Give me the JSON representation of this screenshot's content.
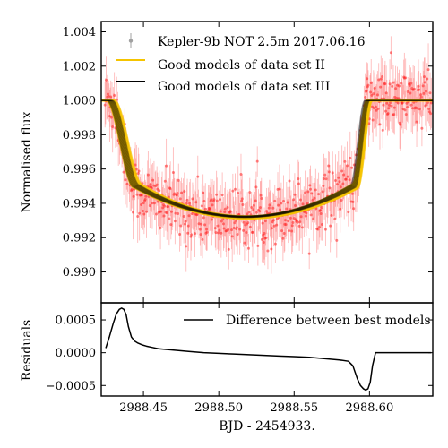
{
  "chart_data": [
    {
      "type": "scatter",
      "panel": "top",
      "xlabel": "",
      "ylabel": "Normalised flux",
      "xlim": [
        2988.422,
        2988.642
      ],
      "ylim": [
        0.9882,
        1.0046
      ],
      "yticks": [
        0.99,
        0.992,
        0.994,
        0.996,
        0.998,
        1.0,
        1.002,
        1.004
      ],
      "ytick_labels": [
        "0.990",
        "0.992",
        "0.994",
        "0.996",
        "0.998",
        "1.000",
        "1.002",
        "1.004"
      ],
      "xticks": [
        2988.45,
        2988.5,
        2988.55,
        2988.6
      ],
      "grid": false,
      "legend": {
        "placement": "top-left",
        "entries": [
          {
            "label": "Kepler-9b NOT 2.5m 2017.06.16",
            "color": "#a0a0a0",
            "kind": "errorbar"
          },
          {
            "label": "Good models of data set II",
            "color": "#f5c400",
            "kind": "line"
          },
          {
            "label": "Good models of data set III",
            "color": "#000000",
            "kind": "line"
          }
        ]
      },
      "series": [
        {
          "name": "Kepler-9b NOT 2.5m 2017.06.16",
          "kind": "points_with_errorbars",
          "color": "#ff2a2a",
          "x_range": [
            2988.4245,
            2988.641
          ],
          "n_points": 560,
          "typical_error": 0.0011,
          "model": {
            "baseline": 1.0,
            "ingress_start": 2988.4275,
            "ingress_end": 2988.445,
            "egress_start": 2988.59,
            "egress_end": 2988.5995,
            "depth_at_contact": 0.995,
            "depth_at_center": 0.99315,
            "center": 2988.5125
          }
        },
        {
          "name": "Good models of data set II",
          "kind": "model_band",
          "color": "#f5c400",
          "ingress_start": 2988.428,
          "ingress_end": 2988.4465,
          "egress_start": 2988.5905,
          "egress_end": 2988.6,
          "depth_at_center": 0.99318
        },
        {
          "name": "Good models of data set III",
          "kind": "model_band",
          "color": "#000000",
          "ingress_start": 2988.4275,
          "ingress_end": 2988.4455,
          "egress_start": 2988.589,
          "egress_end": 2988.5985,
          "depth_at_center": 0.99322
        }
      ]
    },
    {
      "type": "line",
      "panel": "bottom",
      "xlabel": "BJD - 2454933.",
      "ylabel": "Residuals",
      "xlim": [
        2988.422,
        2988.642
      ],
      "ylim": [
        -0.00066,
        0.00076
      ],
      "yticks": [
        -0.0005,
        0.0,
        0.0005
      ],
      "ytick_labels": [
        "−0.0005",
        "0.0000",
        "0.0005"
      ],
      "xticks": [
        2988.45,
        2988.5,
        2988.55,
        2988.6
      ],
      "xtick_labels": [
        "2988.45",
        "2988.50",
        "2988.55",
        "2988.60"
      ],
      "grid": false,
      "legend": {
        "placement": "top-right",
        "entries": [
          {
            "label": "Difference between best models",
            "color": "#000000",
            "kind": "line"
          }
        ]
      },
      "series": [
        {
          "name": "Difference between best models",
          "color": "#000000",
          "x": [
            2988.425,
            2988.4275,
            2988.43,
            2988.432,
            2988.434,
            2988.4355,
            2988.437,
            2988.4385,
            2988.44,
            2988.442,
            2988.444,
            2988.446,
            2988.449,
            2988.452,
            2988.456,
            2988.46,
            2988.47,
            2988.48,
            2988.49,
            2988.5,
            2988.51,
            2988.52,
            2988.53,
            2988.54,
            2988.55,
            2988.56,
            2988.57,
            2988.58,
            2988.586,
            2988.589,
            2988.592,
            2988.594,
            2988.596,
            2988.5975,
            2988.599,
            2988.6005,
            2988.602,
            2988.604,
            2988.61,
            2988.62,
            2988.63,
            2988.641
          ],
          "y": [
            7e-05,
            0.00025,
            0.00045,
            0.00059,
            0.00066,
            0.00068,
            0.00066,
            0.00058,
            0.0004,
            0.00024,
            0.00018,
            0.00015,
            0.00012,
            0.0001,
            8e-05,
            6e-05,
            4e-05,
            2e-05,
            0.0,
            -1e-05,
            -2e-05,
            -3e-05,
            -4e-05,
            -5e-05,
            -6e-05,
            -7e-05,
            -9e-05,
            -0.00011,
            -0.00013,
            -0.0002,
            -0.0004,
            -0.0005,
            -0.00055,
            -0.00057,
            -0.00055,
            -0.00045,
            -0.0002,
            0.0,
            0.0,
            0.0,
            0.0,
            0.0
          ]
        }
      ]
    }
  ]
}
